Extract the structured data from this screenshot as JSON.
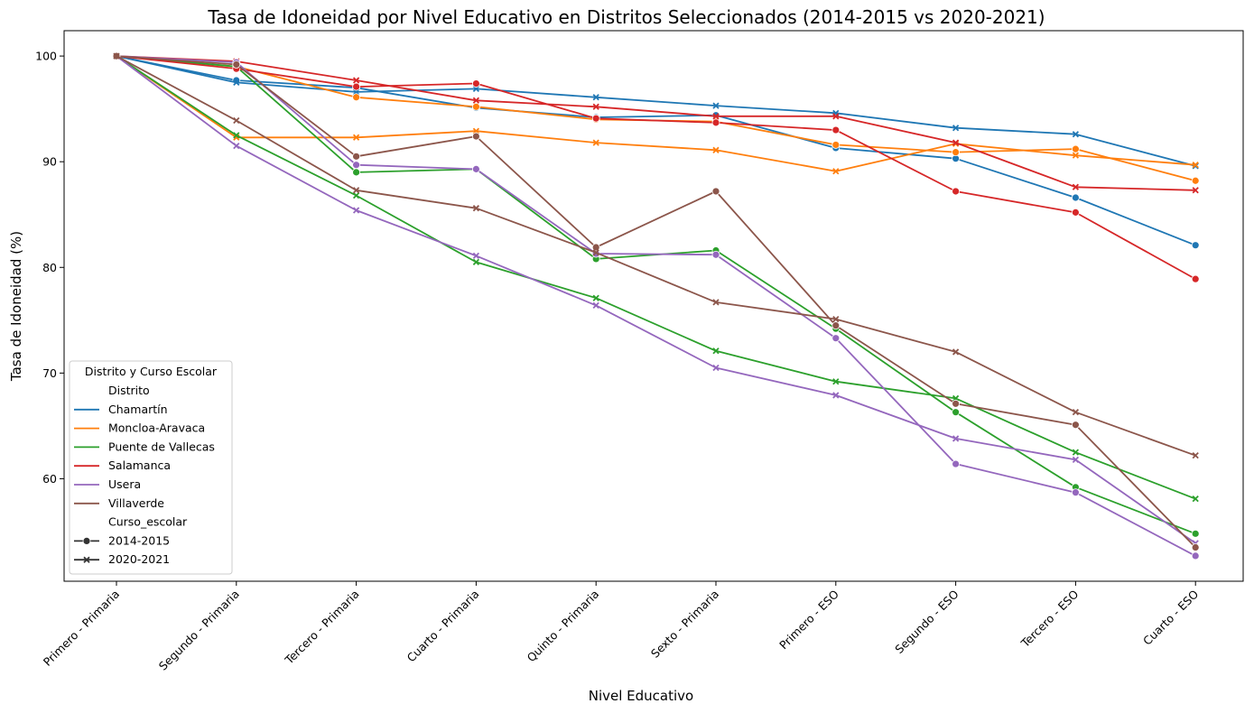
{
  "chart_data": {
    "type": "line",
    "title": "Tasa de Idoneidad por Nivel Educativo en Distritos Seleccionados (2014-2015 vs 2020-2021)",
    "xlabel": "Nivel Educativo",
    "ylabel": "Tasa de Idoneidad (%)",
    "ylim": [
      50.3,
      102.4
    ],
    "yticks": [
      60,
      70,
      80,
      90,
      100
    ],
    "ytick_labels": [
      "60",
      "70",
      "80",
      "90",
      "100"
    ],
    "grid": false,
    "legend_position": "lower-left",
    "categories": [
      "Primero - Primaria",
      "Segundo - Primaria",
      "Tercero - Primaria",
      "Cuarto - Primaria",
      "Quinto - Primaria",
      "Sexto - Primaria",
      "Primero - ESO",
      "Segundo - ESO",
      "Tercero - ESO",
      "Cuarto - ESO"
    ],
    "legend": {
      "title": "Distrito y Curso Escolar",
      "hue_title": "Distrito",
      "style_title": "Curso_escolar",
      "districts": [
        {
          "name": "Chamartín",
          "color": "#1f77b4"
        },
        {
          "name": "Moncloa-Aravaca",
          "color": "#ff7f0e"
        },
        {
          "name": "Puente de Vallecas",
          "color": "#2ca02c"
        },
        {
          "name": "Salamanca",
          "color": "#d62728"
        },
        {
          "name": "Usera",
          "color": "#9467bd"
        },
        {
          "name": "Villaverde",
          "color": "#8c564b"
        }
      ],
      "styles": [
        {
          "name": "2014-2015",
          "marker": "circle"
        },
        {
          "name": "2020-2021",
          "marker": "x"
        }
      ]
    },
    "series": [
      {
        "name": "Chamartín",
        "curso": "2014-2015",
        "color": "#1f77b4",
        "marker": "circle",
        "values": [
          100,
          97.7,
          97.0,
          95.1,
          94.2,
          94.4,
          91.3,
          90.3,
          86.6,
          82.1
        ]
      },
      {
        "name": "Chamartín",
        "curso": "2020-2021",
        "color": "#1f77b4",
        "marker": "x",
        "values": [
          100,
          97.5,
          96.6,
          96.9,
          96.1,
          95.3,
          94.6,
          93.2,
          92.6,
          89.6
        ]
      },
      {
        "name": "Moncloa-Aravaca",
        "curso": "2014-2015",
        "color": "#ff7f0e",
        "marker": "circle",
        "values": [
          100,
          99.0,
          96.1,
          95.2,
          94.0,
          93.8,
          91.6,
          90.9,
          91.2,
          88.2
        ]
      },
      {
        "name": "Moncloa-Aravaca",
        "curso": "2020-2021",
        "color": "#ff7f0e",
        "marker": "x",
        "values": [
          100,
          92.3,
          92.3,
          92.9,
          91.8,
          91.1,
          89.1,
          91.7,
          90.6,
          89.7
        ]
      },
      {
        "name": "Puente de Vallecas",
        "curso": "2014-2015",
        "color": "#2ca02c",
        "marker": "circle",
        "values": [
          100,
          99.0,
          89.0,
          89.3,
          80.8,
          81.6,
          74.2,
          66.3,
          59.2,
          54.8
        ]
      },
      {
        "name": "Puente de Vallecas",
        "curso": "2020-2021",
        "color": "#2ca02c",
        "marker": "x",
        "values": [
          100,
          92.5,
          86.8,
          80.5,
          77.1,
          72.1,
          69.2,
          67.6,
          62.5,
          58.1
        ]
      },
      {
        "name": "Salamanca",
        "curso": "2014-2015",
        "color": "#d62728",
        "marker": "circle",
        "values": [
          100,
          98.8,
          97.1,
          97.4,
          94.1,
          93.7,
          93.0,
          87.2,
          85.2,
          78.9
        ]
      },
      {
        "name": "Salamanca",
        "curso": "2020-2021",
        "color": "#d62728",
        "marker": "x",
        "values": [
          100,
          99.5,
          97.7,
          95.8,
          95.2,
          94.3,
          94.3,
          91.8,
          87.6,
          87.3
        ]
      },
      {
        "name": "Usera",
        "curso": "2014-2015",
        "color": "#9467bd",
        "marker": "circle",
        "values": [
          100,
          99.4,
          89.7,
          89.3,
          81.3,
          81.2,
          73.3,
          61.4,
          58.7,
          52.7
        ]
      },
      {
        "name": "Usera",
        "curso": "2020-2021",
        "color": "#9467bd",
        "marker": "x",
        "values": [
          100,
          91.5,
          85.4,
          81.1,
          76.4,
          70.5,
          67.9,
          63.8,
          61.8,
          53.9
        ]
      },
      {
        "name": "Villaverde",
        "curso": "2014-2015",
        "color": "#8c564b",
        "marker": "circle",
        "values": [
          100,
          99.2,
          90.5,
          92.4,
          81.9,
          87.2,
          74.5,
          67.1,
          65.1,
          53.5
        ]
      },
      {
        "name": "Villaverde",
        "curso": "2020-2021",
        "color": "#8c564b",
        "marker": "x",
        "values": [
          100,
          93.9,
          87.3,
          85.6,
          81.4,
          76.7,
          75.1,
          72.0,
          66.3,
          62.2
        ]
      }
    ]
  }
}
